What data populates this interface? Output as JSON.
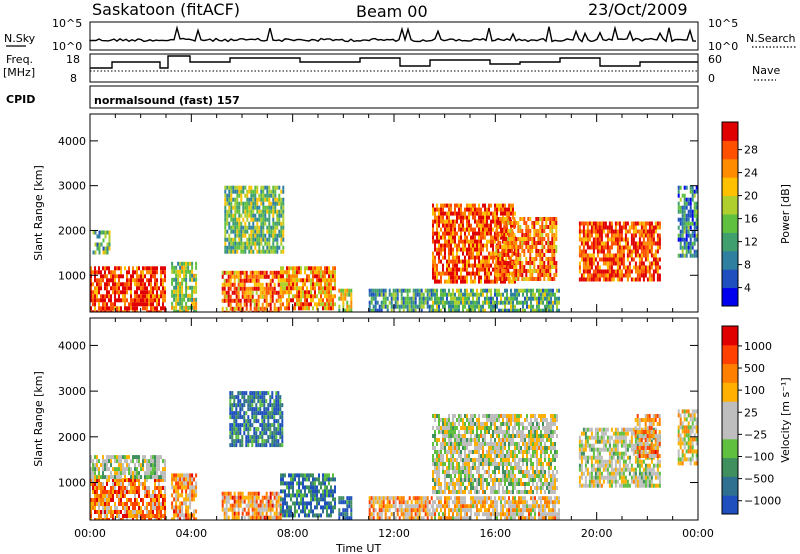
{
  "header": {
    "station": "Saskatoon (fitACF)",
    "beam": "Beam 00",
    "date": "23/Oct/2009"
  },
  "summary_panels": {
    "nsky_label": "N.Sky",
    "nsky_ticks": [
      "10^5",
      "10^0"
    ],
    "nsearch_label": "N.Search",
    "nsearch_ticks": [
      "10^5",
      "10^0"
    ],
    "freq_label_1": "Freq.",
    "freq_label_2": "[MHz]",
    "freq_ticks": [
      "18",
      "8"
    ],
    "nave_label": "Nave",
    "nave_ticks": [
      "60",
      "0"
    ],
    "cpid_label": "CPID",
    "cpid_text": "normalsound (fast) 157"
  },
  "chart_data": [
    {
      "type": "heatmap",
      "panel": "power",
      "ylabel": "Slant Range [km]",
      "xlabel": "",
      "x_ticks": [
        "00:00",
        "04:00",
        "08:00",
        "12:00",
        "16:00",
        "20:00",
        "00:00"
      ],
      "xlim_hours": [
        0,
        24
      ],
      "ylim": [
        180,
        4600
      ],
      "y_ticks": [
        1000,
        2000,
        3000,
        4000
      ],
      "colorbar_label": "Power [dB]",
      "colorbar_ticks": [
        "4",
        "8",
        "12",
        "16",
        "20",
        "24",
        "28"
      ],
      "colorbar_colors": [
        "#0000ee",
        "#1f4fbf",
        "#2f7fa0",
        "#3f9f6f",
        "#5fbf3f",
        "#afcf2f",
        "#ffc000",
        "#ff8c00",
        "#ff5000",
        "#e00000"
      ],
      "regions": [
        {
          "t0": 0.0,
          "t1": 3.0,
          "r0": 180,
          "r1": 1200,
          "level": 0.9
        },
        {
          "t0": 0.1,
          "t1": 0.8,
          "r0": 1500,
          "r1": 2000,
          "level": 0.4
        },
        {
          "t0": 3.2,
          "t1": 4.2,
          "r0": 180,
          "r1": 1300,
          "level": 0.5
        },
        {
          "t0": 5.2,
          "t1": 7.5,
          "r0": 180,
          "r1": 1100,
          "level": 0.8
        },
        {
          "t0": 5.3,
          "t1": 7.6,
          "r0": 1500,
          "r1": 3000,
          "level": 0.45
        },
        {
          "t0": 7.5,
          "t1": 9.7,
          "r0": 300,
          "r1": 1200,
          "level": 0.75
        },
        {
          "t0": 9.8,
          "t1": 10.3,
          "r0": 180,
          "r1": 700,
          "level": 0.6
        },
        {
          "t0": 11.0,
          "t1": 13.5,
          "r0": 180,
          "r1": 700,
          "level": 0.35
        },
        {
          "t0": 13.5,
          "t1": 16.8,
          "r0": 900,
          "r1": 2600,
          "level": 0.85
        },
        {
          "t0": 13.5,
          "t1": 18.5,
          "r0": 180,
          "r1": 700,
          "level": 0.4
        },
        {
          "t0": 16.0,
          "t1": 18.4,
          "r0": 900,
          "r1": 2300,
          "level": 0.8
        },
        {
          "t0": 19.3,
          "t1": 22.5,
          "r0": 900,
          "r1": 2200,
          "level": 0.85
        },
        {
          "t0": 23.2,
          "t1": 24.0,
          "r0": 1400,
          "r1": 3000,
          "level": 0.3
        }
      ]
    },
    {
      "type": "heatmap",
      "panel": "velocity",
      "ylabel": "Slant Range [km]",
      "xlabel": "Time UT",
      "x_ticks": [
        "00:00",
        "04:00",
        "08:00",
        "12:00",
        "16:00",
        "20:00",
        "00:00"
      ],
      "xlim_hours": [
        0,
        24
      ],
      "ylim": [
        180,
        4600
      ],
      "y_ticks": [
        1000,
        2000,
        3000,
        4000
      ],
      "colorbar_label": "Velocity [m s⁻¹]",
      "colorbar_ticks": [
        "1000",
        "500",
        "100",
        "25",
        "−25",
        "−100",
        "−500",
        "−1000"
      ],
      "colorbar_colors": [
        "#1f4fbf",
        "#2f6f8f",
        "#3f8f5f",
        "#5fbf3f",
        "#bebebe",
        "#bebebe",
        "#ffb000",
        "#ff8000",
        "#ff4000",
        "#e00000"
      ],
      "regions": [
        {
          "t0": 0.0,
          "t1": 3.0,
          "r0": 180,
          "r1": 1100,
          "level": 0.75
        },
        {
          "t0": 0.0,
          "t1": 3.0,
          "r0": 1100,
          "r1": 1600,
          "level": 0.45
        },
        {
          "t0": 3.2,
          "t1": 4.2,
          "r0": 180,
          "r1": 1200,
          "level": 0.7
        },
        {
          "t0": 5.2,
          "t1": 7.5,
          "r0": 180,
          "r1": 800,
          "level": 0.7
        },
        {
          "t0": 5.5,
          "t1": 7.6,
          "r0": 1800,
          "r1": 3000,
          "level": 0.15
        },
        {
          "t0": 7.5,
          "t1": 9.7,
          "r0": 300,
          "r1": 1200,
          "level": 0.15
        },
        {
          "t0": 9.8,
          "t1": 10.3,
          "r0": 180,
          "r1": 700,
          "level": 0.1
        },
        {
          "t0": 11.0,
          "t1": 13.5,
          "r0": 180,
          "r1": 700,
          "level": 0.65
        },
        {
          "t0": 13.5,
          "t1": 18.4,
          "r0": 800,
          "r1": 2500,
          "level": 0.48
        },
        {
          "t0": 13.5,
          "t1": 18.5,
          "r0": 180,
          "r1": 700,
          "level": 0.6
        },
        {
          "t0": 19.3,
          "t1": 22.5,
          "r0": 900,
          "r1": 2200,
          "level": 0.48
        },
        {
          "t0": 21.5,
          "t1": 22.5,
          "r0": 1600,
          "r1": 2500,
          "level": 0.7
        },
        {
          "t0": 23.2,
          "t1": 24.0,
          "r0": 1400,
          "r1": 2600,
          "level": 0.55
        }
      ]
    }
  ]
}
